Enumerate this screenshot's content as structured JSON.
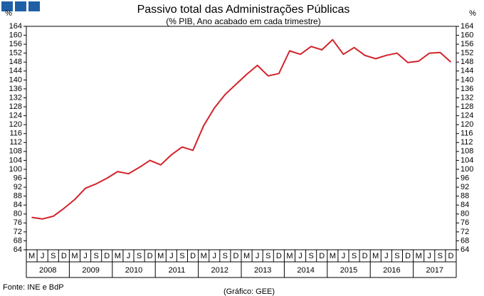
{
  "chart_data": {
    "type": "line",
    "title": "Passivo total das Administrações Públicas",
    "subtitle": "(% PIB, Ano acabado em cada trimestre)",
    "y_label": "%",
    "categories": [
      "M",
      "J",
      "S",
      "D",
      "M",
      "J",
      "S",
      "D",
      "M",
      "J",
      "S",
      "D",
      "M",
      "J",
      "S",
      "D",
      "M",
      "J",
      "S",
      "D",
      "M",
      "J",
      "S",
      "D",
      "M",
      "J",
      "S",
      "D",
      "M",
      "J",
      "S",
      "D",
      "M",
      "J",
      "S",
      "D",
      "M",
      "J",
      "S",
      "D"
    ],
    "years": [
      "2008",
      "2009",
      "2010",
      "2011",
      "2012",
      "2013",
      "2014",
      "2015",
      "2016",
      "2017"
    ],
    "series": [
      {
        "name": "Passivo total",
        "color": "#d2232a",
        "values": [
          78.5,
          77.8,
          79,
          82.5,
          86.5,
          91.5,
          93.5,
          96,
          99,
          98,
          100.8,
          104,
          102,
          106.5,
          110,
          108.5,
          119.5,
          127.5,
          133.5,
          138,
          142.5,
          146.5,
          141.8,
          142.9,
          153,
          151.5,
          155,
          153.5,
          158,
          151.5,
          154.5,
          151,
          149.5,
          151,
          152,
          147.8,
          148.4,
          152,
          152.3,
          148
        ]
      }
    ],
    "ylim": [
      64,
      164
    ],
    "yticks": [
      64,
      68,
      72,
      76,
      80,
      84,
      88,
      92,
      96,
      100,
      104,
      108,
      112,
      116,
      120,
      124,
      128,
      132,
      136,
      140,
      144,
      148,
      152,
      156,
      160,
      164
    ],
    "grid": false,
    "source": "Fonte: INE e BdP",
    "credit": "(Gráfico: GEE)"
  }
}
